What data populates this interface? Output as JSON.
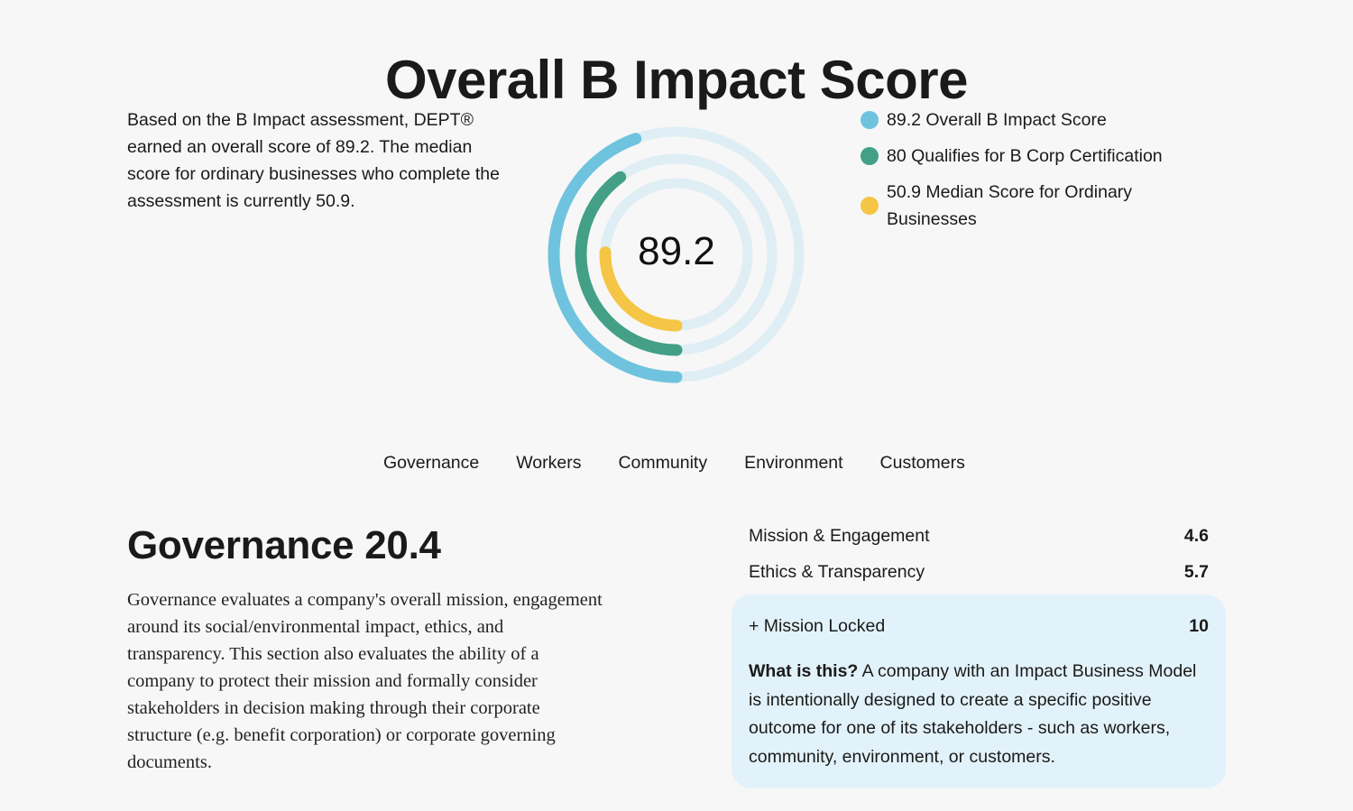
{
  "header": {
    "title": "Overall B Impact Score"
  },
  "intro": {
    "text": "Based on the B Impact assessment, DEPT® earned an overall score of 89.2. The median score for ordinary businesses who complete the assessment is currently 50.9."
  },
  "score": {
    "value": "89.2",
    "rings": [
      {
        "name": "overall",
        "value": 89.2,
        "color": "#6fc3de",
        "track": "#dfeef4"
      },
      {
        "name": "qualifies",
        "value": 80,
        "color": "#43a087",
        "track": "#dfeef4"
      },
      {
        "name": "median",
        "value": 50.9,
        "color": "#f5c545",
        "track": "#dfeef4"
      }
    ]
  },
  "legend": [
    {
      "label": "89.2 Overall B Impact Score",
      "color": "#6fc3de"
    },
    {
      "label": "80 Qualifies for B Corp Certification",
      "color": "#43a087"
    },
    {
      "label": "50.9 Median Score for Ordinary Businesses",
      "color": "#f5c545"
    }
  ],
  "tabs": [
    {
      "label": "Governance",
      "active": true
    },
    {
      "label": "Workers",
      "active": false
    },
    {
      "label": "Community",
      "active": false
    },
    {
      "label": "Environment",
      "active": false
    },
    {
      "label": "Customers",
      "active": false
    }
  ],
  "section": {
    "title": "Governance 20.4",
    "description": "Governance evaluates a company's overall mission, engagement around its social/environmental impact, ethics, and transparency. This section also evaluates the ability of a company to protect their mission and formally consider stakeholders in decision making through their corporate structure (e.g. benefit corporation) or corporate governing documents."
  },
  "metrics": [
    {
      "label": "Mission & Engagement",
      "value": "4.6"
    },
    {
      "label": "Ethics & Transparency",
      "value": "5.7"
    }
  ],
  "callout": {
    "label": "+ Mission Locked",
    "value": "10",
    "lead": "What is this?",
    "body": " A company with an Impact Business Model is intentionally designed to create a specific positive outcome for one of its stakeholders - such as workers, community, environment, or customers.",
    "background": "#e2f2fa"
  }
}
